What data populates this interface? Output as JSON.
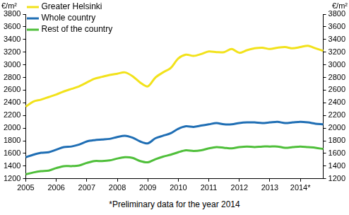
{
  "chart_data": {
    "type": "line",
    "ylabel": "€/m²",
    "annotations": [
      "*Preliminary data for the year 2014"
    ],
    "categories": [
      "2005",
      null,
      null,
      null,
      "2006",
      null,
      null,
      null,
      "2007",
      null,
      null,
      null,
      "2008",
      null,
      null,
      null,
      "2009",
      null,
      null,
      null,
      "2010",
      null,
      null,
      null,
      "2011",
      null,
      null,
      null,
      "2012",
      null,
      null,
      null,
      "2013",
      null,
      null,
      null,
      "2014*",
      null,
      null,
      null
    ],
    "series": [
      {
        "name": "Greater Helsinki",
        "color": "#f2e21b",
        "values": [
          2340,
          2420,
          2450,
          2490,
          2530,
          2580,
          2620,
          2660,
          2720,
          2780,
          2810,
          2840,
          2860,
          2880,
          2820,
          2720,
          2660,
          2800,
          2880,
          2950,
          3100,
          3160,
          3140,
          3170,
          3210,
          3200,
          3200,
          3250,
          3190,
          3230,
          3260,
          3270,
          3250,
          3270,
          3280,
          3260,
          3280,
          3300,
          3260,
          3220
        ]
      },
      {
        "name": "Whole country",
        "color": "#1f6eb4",
        "values": [
          1540,
          1580,
          1610,
          1620,
          1660,
          1700,
          1710,
          1740,
          1790,
          1810,
          1820,
          1830,
          1860,
          1880,
          1850,
          1790,
          1760,
          1840,
          1880,
          1920,
          1990,
          2030,
          2020,
          2040,
          2060,
          2080,
          2060,
          2060,
          2080,
          2090,
          2090,
          2080,
          2090,
          2100,
          2080,
          2090,
          2100,
          2090,
          2070,
          2060
        ]
      },
      {
        "name": "Rest of the country",
        "color": "#4fbf3a",
        "values": [
          1270,
          1300,
          1320,
          1330,
          1370,
          1400,
          1400,
          1410,
          1450,
          1480,
          1480,
          1490,
          1520,
          1540,
          1530,
          1480,
          1460,
          1510,
          1550,
          1580,
          1620,
          1650,
          1640,
          1650,
          1680,
          1700,
          1690,
          1680,
          1700,
          1710,
          1700,
          1710,
          1710,
          1710,
          1690,
          1700,
          1710,
          1700,
          1690,
          1670
        ]
      }
    ],
    "ylim": [
      1200,
      3800
    ],
    "yticks": [
      1200,
      1400,
      1600,
      1800,
      2000,
      2200,
      2400,
      2600,
      2800,
      3000,
      3200,
      3400,
      3600,
      3800
    ],
    "grid": false,
    "legend": "top-left"
  }
}
